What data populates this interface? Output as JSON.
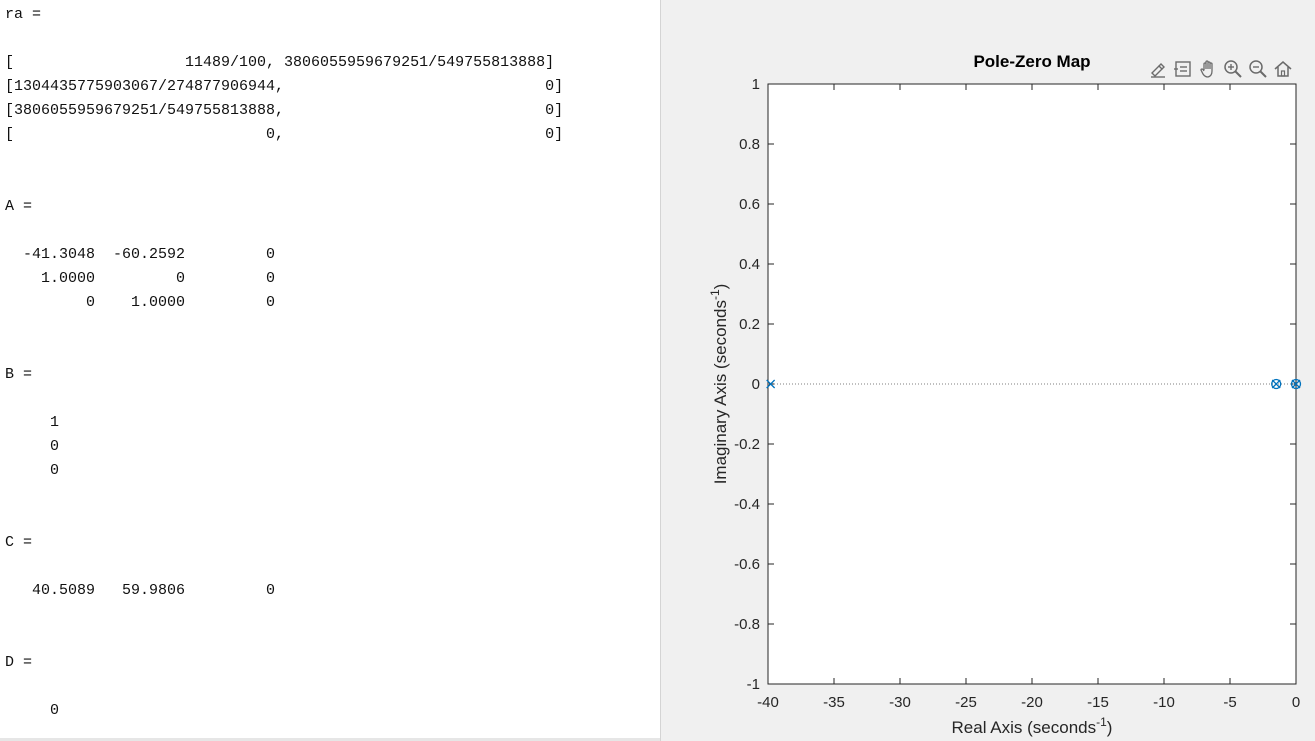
{
  "console": {
    "lines": [
      "ra =",
      "",
      "[                   11489/100, 3806055959679251/549755813888]",
      "[1304435775903067/274877906944,                             0]",
      "[3806055959679251/549755813888,                             0]",
      "[                            0,                             0]",
      "",
      "",
      "A =",
      "",
      "  -41.3048  -60.2592         0",
      "    1.0000         0         0",
      "         0    1.0000         0",
      "",
      "",
      "B =",
      "",
      "     1",
      "     0",
      "     0",
      "",
      "",
      "C =",
      "",
      "   40.5089   59.9806         0",
      "",
      "",
      "D =",
      "",
      "     0"
    ]
  },
  "figure": {
    "toolbar": [
      {
        "icon": "brush-edit-icon"
      },
      {
        "icon": "data-tips-icon"
      },
      {
        "icon": "pan-hand-icon"
      },
      {
        "icon": "zoom-in-icon"
      },
      {
        "icon": "zoom-out-icon"
      },
      {
        "icon": "home-restore-view-icon"
      }
    ]
  },
  "chart_data": {
    "type": "scatter",
    "title": "Pole-Zero Map",
    "xlabel": "Real Axis (seconds",
    "ylabel": "Imaginary Axis (seconds",
    "label_exponent": "-1",
    "label_close": ")",
    "xlim": [
      -40,
      0
    ],
    "ylim": [
      -1,
      1
    ],
    "xticks": [
      -40,
      -35,
      -30,
      -25,
      -20,
      -15,
      -10,
      -5,
      0
    ],
    "yticks": [
      -1,
      -0.8,
      -0.6,
      -0.4,
      -0.2,
      0,
      0.2,
      0.4,
      0.6,
      0.8,
      1
    ],
    "xtick_labels": [
      "-40",
      "-35",
      "-30",
      "-25",
      "-20",
      "-15",
      "-10",
      "-5",
      "0"
    ],
    "ytick_labels": [
      "-1",
      "-0.8",
      "-0.6",
      "-0.4",
      "-0.2",
      "0",
      "0.2",
      "0.4",
      "0.6",
      "0.8",
      "1"
    ],
    "grid": false,
    "marker_color": "#0072bd",
    "series": [
      {
        "marker": "x",
        "points": [
          [
            -39.8,
            0
          ],
          [
            -1.5,
            0
          ],
          [
            0,
            0
          ]
        ]
      },
      {
        "marker": "o",
        "points": [
          [
            -1.5,
            0
          ],
          [
            0,
            0
          ]
        ]
      }
    ]
  }
}
